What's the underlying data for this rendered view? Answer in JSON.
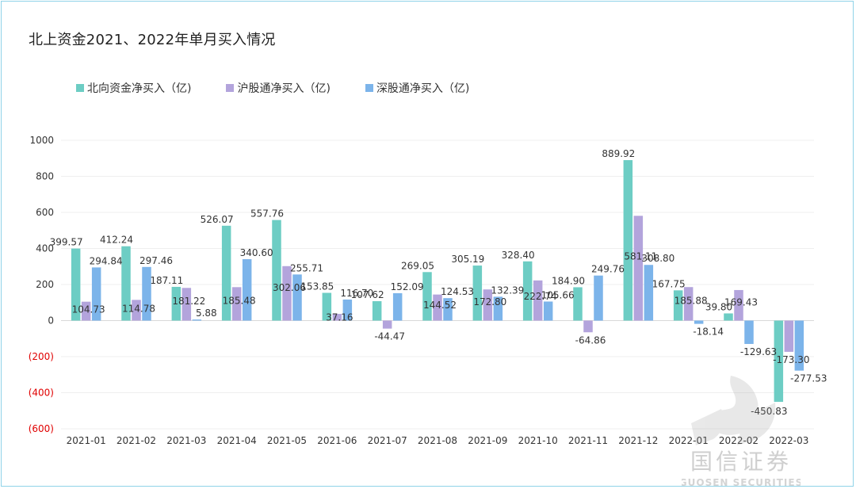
{
  "title": "北上资金2021、2022年单月买入情况",
  "colors": {
    "north": "#6dcdc4",
    "sh": "#b3a4dc",
    "sz": "#7cb4ea",
    "negative_tick": "#e00000",
    "grid": "#efefef",
    "axis_text": "#333333"
  },
  "watermark": {
    "cn": "国信证券",
    "en": "GUOSEN SECURITIES"
  },
  "chart_data": {
    "type": "bar",
    "title": "北上资金2021、2022年单月买入情况",
    "categories": [
      "2021-01",
      "2021-02",
      "2021-03",
      "2021-04",
      "2021-05",
      "2021-06",
      "2021-07",
      "2021-08",
      "2021-09",
      "2021-10",
      "2021-11",
      "2021-12",
      "2022-01",
      "2022-02",
      "2022-03"
    ],
    "series": [
      {
        "name": "北向资金净买入（亿)",
        "color": "#6dcdc4",
        "values": [
          399.57,
          412.24,
          187.11,
          526.07,
          557.76,
          153.85,
          107.62,
          269.05,
          305.19,
          328.4,
          184.9,
          889.92,
          167.75,
          39.8,
          -450.83
        ],
        "labels": [
          "399.57",
          "412.24",
          "187.11",
          "526.07",
          "557.76",
          "153.85",
          "107.62",
          "269.05",
          "305.19",
          "328.40",
          "184.90",
          "889.92",
          "167.75",
          "39.80",
          "-450.83"
        ]
      },
      {
        "name": "沪股通净买入（亿)",
        "color": "#b3a4dc",
        "values": [
          104.73,
          114.78,
          181.22,
          185.48,
          302.06,
          37.16,
          -44.47,
          144.52,
          172.8,
          222.74,
          -64.86,
          581.11,
          185.88,
          169.43,
          -173.3
        ],
        "labels": [
          "104.73",
          "114.78",
          "181.22",
          "185.48",
          "302.06",
          "37.16",
          "-44.47",
          "144.52",
          "172.80",
          "222.74",
          "-64.86",
          "581.11",
          "185.88",
          "169.43",
          "-173.30"
        ]
      },
      {
        "name": "深股通净买入（亿)",
        "color": "#7cb4ea",
        "values": [
          294.84,
          297.46,
          5.88,
          340.6,
          255.71,
          116.7,
          152.09,
          124.53,
          132.39,
          105.66,
          249.76,
          308.8,
          -18.14,
          -129.63,
          -277.53
        ],
        "labels": [
          "294.84",
          "297.46",
          "5.88",
          "340.60",
          "255.71",
          "116.70",
          "152.09",
          "124.53",
          "132.39",
          "105.66",
          "249.76",
          "308.80",
          "-18.14",
          "-129.63",
          "-277.53"
        ]
      }
    ],
    "yticks": [
      {
        "value": 1000,
        "label": "1000"
      },
      {
        "value": 800,
        "label": "800"
      },
      {
        "value": 600,
        "label": "600"
      },
      {
        "value": 400,
        "label": "400"
      },
      {
        "value": 200,
        "label": "200"
      },
      {
        "value": 0,
        "label": "0"
      },
      {
        "value": -200,
        "label": "(200)"
      },
      {
        "value": -400,
        "label": "(400)"
      },
      {
        "value": -600,
        "label": "(600)"
      }
    ],
    "ylim": [
      -600,
      1000
    ],
    "grid": true,
    "legend_position": "top-left"
  }
}
